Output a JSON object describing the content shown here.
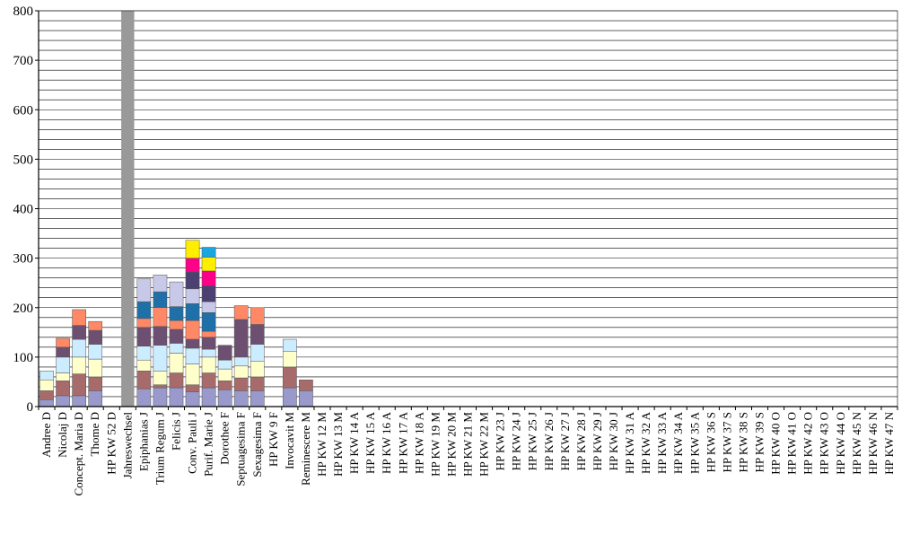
{
  "chart_data": {
    "type": "bar",
    "stacked": true,
    "title": "",
    "xlabel": "",
    "ylabel": "",
    "ylim": [
      0,
      800
    ],
    "yticks": [
      0,
      100,
      200,
      300,
      400,
      500,
      600,
      700,
      800
    ],
    "grid": "horizontal lines every 20",
    "legend": "none",
    "categories": [
      "Andree D",
      "Nicolaj D",
      "Concept. Maria D",
      "Thome D",
      "HP KW 52 D",
      "Jahreswechsel",
      "Epiphanias J",
      "Trium Regum J",
      "Felicis J",
      "Conv. Pauli J",
      "Purif. Marie J",
      "Dorothee F",
      "Septuagesima F",
      "Sexagesima F",
      "HP KW 9 F",
      "Invocavit M",
      "Reminescere M",
      "HP KW 12 M",
      "HP KW 13 M",
      "HP KW 14 A",
      "HP KW 15 A",
      "HP KW 16 A",
      "HP KW 17 A",
      "HP KW 18 A",
      "HP KW 19 M",
      "HP KW 20 M",
      "HP KW 21 M",
      "HP KW 22 M",
      "HP KW 23 J",
      "HP KW 24 J",
      "HP KW 25 J",
      "HP KW 26 J",
      "HP KW 27 J",
      "HP KW 28 J",
      "HP KW 29 J",
      "HP KW 30 J",
      "HP KW 31 A",
      "HP KW 32 A",
      "HP KW 33 A",
      "HP KW 34 A",
      "HP KW 35 A",
      "HP KW 36 S",
      "HP KW 37 S",
      "HP KW 38 S",
      "HP KW 39 S",
      "HP KW 40 O",
      "HP KW 41 O",
      "HP KW 42 O",
      "HP KW 43 O",
      "HP KW 44 O",
      "HP KW 45 N",
      "HP KW 46 N",
      "HP KW 47 N"
    ],
    "colors": [
      "#9999CC",
      "#A86B6B",
      "#FFFFCC",
      "#CCECFF",
      "#6D4F72",
      "#FF8866",
      "#1F6FA8",
      "#C8C8E8",
      "#4B4070",
      "#FF0088",
      "#FFEE00",
      "#1AA6E0",
      "#999999"
    ],
    "stacks": [
      [
        14,
        18,
        22,
        18
      ],
      [
        22,
        30,
        16,
        32,
        20,
        18
      ],
      [
        22,
        44,
        34,
        36,
        28,
        32
      ],
      [
        32,
        28,
        36,
        30,
        28,
        18
      ],
      [],
      [],
      [
        36,
        36,
        22,
        28,
        38,
        18,
        34,
        46
      ],
      [
        38,
        6,
        28,
        52,
        38,
        38,
        32,
        34
      ],
      [
        38,
        30,
        40,
        20,
        28,
        18,
        28,
        50
      ],
      [
        30,
        14,
        42,
        32,
        18,
        38,
        34,
        30,
        34,
        28,
        36
      ],
      [
        38,
        30,
        32,
        16,
        24,
        12,
        38,
        22,
        32,
        30,
        28,
        20
      ],
      [
        34,
        18,
        24,
        18,
        30
      ],
      [
        32,
        26,
        24,
        18,
        76,
        28
      ],
      [
        32,
        28,
        32,
        34,
        40,
        34
      ],
      [],
      [
        38,
        42,
        32,
        24
      ],
      [
        32,
        22
      ]
    ],
    "marker_bar": {
      "category": "Jahreswechsel",
      "value": 800,
      "color": "#999999"
    }
  }
}
